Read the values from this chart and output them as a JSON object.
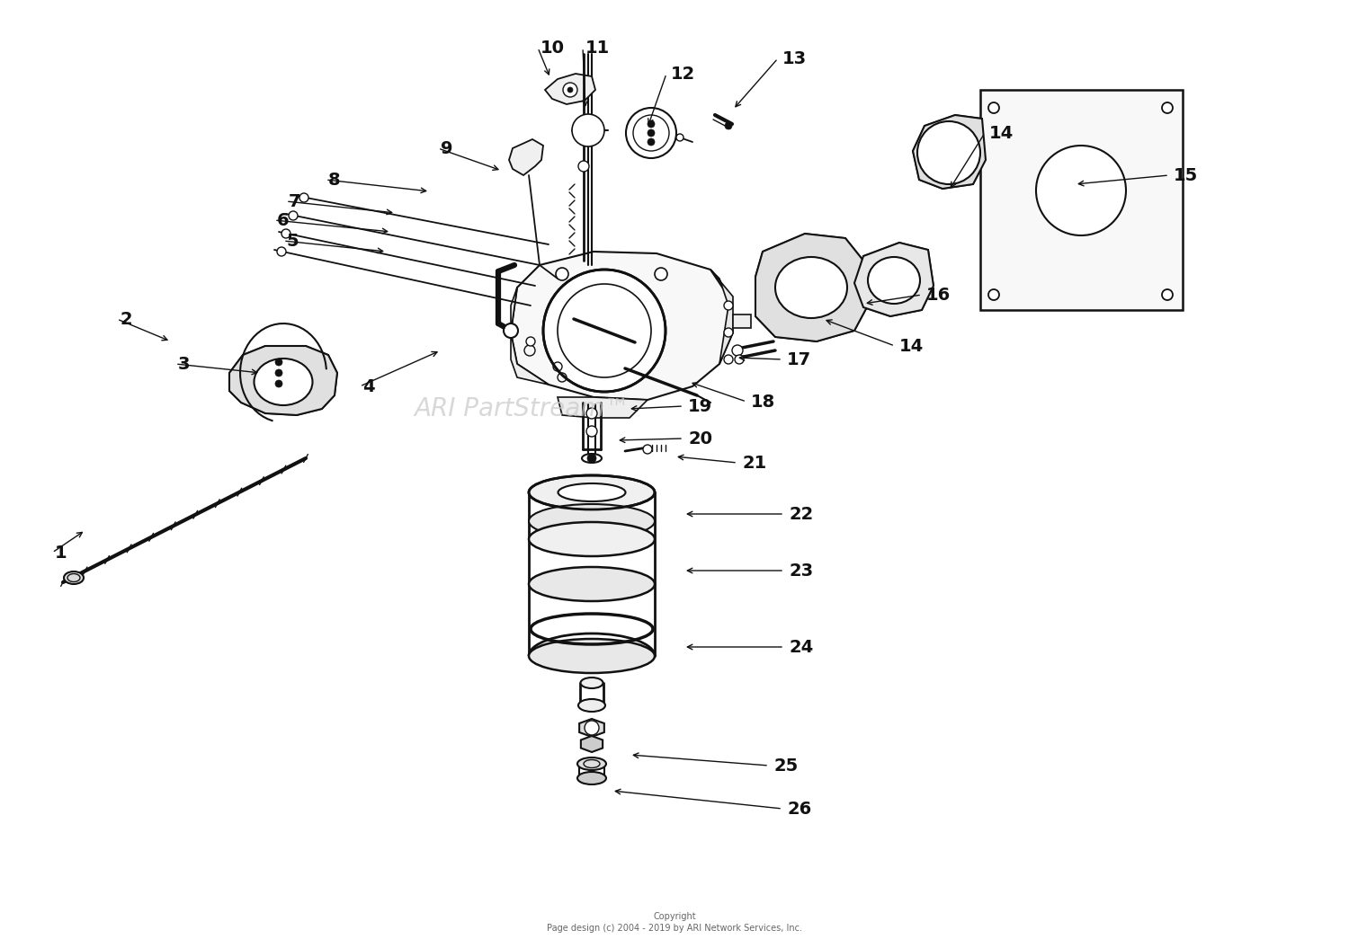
{
  "background_color": "#ffffff",
  "line_color": "#111111",
  "text_color": "#111111",
  "watermark": "ARI PartStream™",
  "watermark_color": "#c8c8c8",
  "copyright_line1": "Copyright",
  "copyright_line2": "Page design (c) 2004 - 2019 by ARI Network Services, Inc.",
  "figsize": [
    15.0,
    10.45
  ],
  "dpi": 100,
  "label_fontsize": 14,
  "callouts": [
    [
      1,
      95,
      590,
      58,
      615
    ],
    [
      2,
      190,
      380,
      130,
      355
    ],
    [
      3,
      290,
      415,
      195,
      405
    ],
    [
      4,
      490,
      390,
      400,
      430
    ],
    [
      5,
      430,
      280,
      315,
      268
    ],
    [
      6,
      435,
      258,
      305,
      245
    ],
    [
      7,
      440,
      237,
      318,
      224
    ],
    [
      8,
      478,
      213,
      362,
      200
    ],
    [
      9,
      558,
      190,
      487,
      165
    ],
    [
      10,
      612,
      87,
      598,
      53
    ],
    [
      11,
      651,
      122,
      648,
      53
    ],
    [
      12,
      720,
      142,
      741,
      82
    ],
    [
      13,
      815,
      122,
      865,
      65
    ],
    [
      14,
      915,
      355,
      995,
      385
    ],
    [
      14,
      1055,
      212,
      1095,
      148
    ],
    [
      15,
      1195,
      205,
      1300,
      195
    ],
    [
      16,
      960,
      338,
      1025,
      328
    ],
    [
      17,
      818,
      398,
      870,
      400
    ],
    [
      18,
      766,
      425,
      830,
      447
    ],
    [
      19,
      698,
      455,
      760,
      452
    ],
    [
      20,
      685,
      490,
      760,
      488
    ],
    [
      21,
      750,
      508,
      820,
      515
    ],
    [
      22,
      760,
      572,
      872,
      572
    ],
    [
      23,
      760,
      635,
      872,
      635
    ],
    [
      24,
      760,
      720,
      872,
      720
    ],
    [
      25,
      700,
      840,
      855,
      852
    ],
    [
      26,
      680,
      880,
      870,
      900
    ]
  ]
}
